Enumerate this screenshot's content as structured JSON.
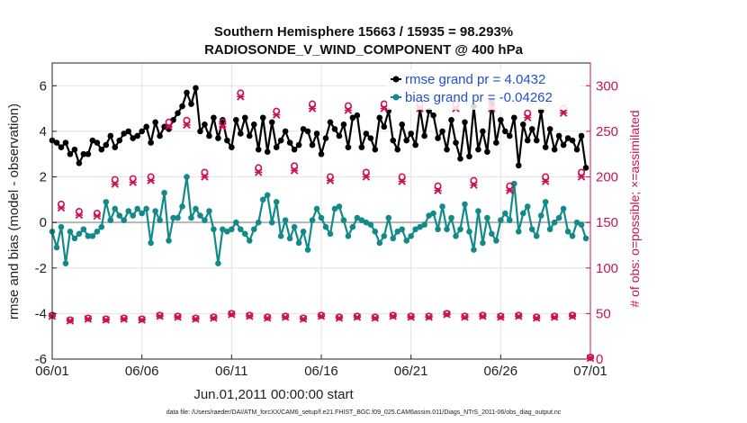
{
  "chart_data": {
    "type": "line",
    "title": "Southern Hemisphere 15663 / 15935 = 98.293%",
    "subtitle": "RADIOSONDE_V_WIND_COMPONENT @ 400 hPa",
    "xlabel": "Jun.01,2011 00:00:00 start",
    "ylabel": "rmse and bias (model - observation)",
    "ylabel_right": "# of obs: o=possible; ×=assimilated",
    "footnote": "data file: /Users/raeder/DAI/ATM_forcXX/CAM6_setup/f.e21.FHIST_BGC.f09_025.CAM6assim.011/Diags_NTrS_2011-06/obs_diag_output.nc",
    "x_ticks": [
      "06/01",
      "06/06",
      "06/11",
      "06/16",
      "06/21",
      "06/26",
      "07/01"
    ],
    "x_tick_days": [
      0,
      5,
      10,
      15,
      20,
      25,
      30
    ],
    "xlim": [
      0,
      30
    ],
    "ylim": [
      -6,
      7
    ],
    "y_ticks": [
      -6,
      -4,
      -2,
      0,
      2,
      4,
      6
    ],
    "y_tick_labels": [
      "-6",
      "-4",
      "-2",
      "0",
      "2",
      "4",
      "6"
    ],
    "ylim_right": [
      0,
      325
    ],
    "y_ticks_right": [
      0,
      50,
      100,
      150,
      200,
      250,
      300
    ],
    "y_tick_labels_right": [
      "0",
      "50",
      "100",
      "150",
      "200",
      "250",
      "300"
    ],
    "grid": true,
    "legend": [
      {
        "label": "rmse grand pr = 4.0432",
        "color": "#000000"
      },
      {
        "label": "bias grand pr = -0.04262",
        "color": "#138a8a"
      }
    ],
    "legend_position": "top-right",
    "series": [
      {
        "name": "rmse",
        "color": "#000000",
        "axis": "left",
        "x": [
          0.0,
          0.25,
          0.5,
          0.75,
          1.0,
          1.25,
          1.5,
          1.75,
          2.0,
          2.25,
          2.5,
          2.75,
          3.0,
          3.25,
          3.5,
          3.75,
          4.0,
          4.25,
          4.5,
          4.75,
          5.0,
          5.25,
          5.5,
          5.75,
          6.0,
          6.25,
          6.5,
          6.75,
          7.0,
          7.25,
          7.5,
          7.75,
          8.0,
          8.25,
          8.5,
          8.75,
          9.0,
          9.25,
          9.5,
          9.75,
          10.0,
          10.25,
          10.5,
          10.75,
          11.0,
          11.25,
          11.5,
          11.75,
          12.0,
          12.25,
          12.5,
          12.75,
          13.0,
          13.25,
          13.5,
          13.75,
          14.0,
          14.25,
          14.5,
          14.75,
          15.0,
          15.25,
          15.5,
          15.75,
          16.0,
          16.25,
          16.5,
          16.75,
          17.0,
          17.25,
          17.5,
          17.75,
          18.0,
          18.25,
          18.5,
          18.75,
          19.0,
          19.25,
          19.5,
          19.75,
          20.0,
          20.25,
          20.5,
          20.75,
          21.0,
          21.25,
          21.5,
          21.75,
          22.0,
          22.25,
          22.5,
          22.75,
          23.0,
          23.25,
          23.5,
          23.75,
          24.0,
          24.25,
          24.5,
          24.75,
          25.0,
          25.25,
          25.5,
          25.75,
          26.0,
          26.25,
          26.5,
          26.75,
          27.0,
          27.25,
          27.5,
          27.75,
          28.0,
          28.25,
          28.5,
          28.75,
          29.0,
          29.25,
          29.5,
          29.75
        ],
        "values": [
          3.6,
          3.5,
          3.3,
          3.5,
          3.0,
          3.2,
          2.6,
          3.0,
          3.0,
          3.6,
          3.5,
          3.2,
          3.4,
          3.8,
          3.3,
          3.6,
          3.9,
          4.0,
          3.7,
          3.8,
          4.0,
          4.2,
          3.5,
          4.4,
          3.8,
          4.2,
          4.1,
          4.5,
          4.8,
          5.1,
          5.7,
          5.2,
          5.9,
          4.0,
          4.3,
          3.8,
          4.6,
          3.7,
          4.5,
          3.6,
          3.3,
          4.5,
          3.9,
          4.6,
          3.8,
          4.3,
          3.2,
          4.6,
          3.1,
          4.4,
          3.3,
          3.6,
          4.0,
          3.5,
          3.2,
          3.4,
          4.1,
          4.0,
          3.4,
          3.9,
          3.0,
          3.7,
          4.4,
          4.1,
          3.8,
          4.3,
          3.3,
          4.6,
          4.7,
          3.3,
          3.9,
          3.7,
          3.2,
          4.6,
          4.2,
          4.9,
          3.6,
          3.2,
          4.3,
          3.6,
          3.9,
          3.4,
          5.0,
          3.8,
          4.9,
          4.7,
          3.7,
          4.0,
          3.2,
          4.5,
          3.5,
          2.8,
          4.4,
          2.9,
          5.1,
          3.2,
          4.0,
          3.1,
          5.3,
          3.5,
          4.5,
          4.0,
          3.8,
          4.6,
          2.5,
          4.3,
          3.6,
          4.1,
          3.6,
          4.9,
          3.3,
          4.1,
          3.2,
          3.8,
          3.4,
          3.7,
          3.6,
          3.2,
          3.8,
          2.4
        ]
      },
      {
        "name": "bias",
        "color": "#138a8a",
        "axis": "left",
        "x": [
          0.0,
          0.25,
          0.5,
          0.75,
          1.0,
          1.25,
          1.5,
          1.75,
          2.0,
          2.25,
          2.5,
          2.75,
          3.0,
          3.25,
          3.5,
          3.75,
          4.0,
          4.25,
          4.5,
          4.75,
          5.0,
          5.25,
          5.5,
          5.75,
          6.0,
          6.25,
          6.5,
          6.75,
          7.0,
          7.25,
          7.5,
          7.75,
          8.0,
          8.25,
          8.5,
          8.75,
          9.0,
          9.25,
          9.5,
          9.75,
          10.0,
          10.25,
          10.5,
          10.75,
          11.0,
          11.25,
          11.5,
          11.75,
          12.0,
          12.25,
          12.5,
          12.75,
          13.0,
          13.25,
          13.5,
          13.75,
          14.0,
          14.25,
          14.5,
          14.75,
          15.0,
          15.25,
          15.5,
          15.75,
          16.0,
          16.25,
          16.5,
          16.75,
          17.0,
          17.25,
          17.5,
          17.75,
          18.0,
          18.25,
          18.5,
          18.75,
          19.0,
          19.25,
          19.5,
          19.75,
          20.0,
          20.25,
          20.5,
          20.75,
          21.0,
          21.25,
          21.5,
          21.75,
          22.0,
          22.25,
          22.5,
          22.75,
          23.0,
          23.25,
          23.5,
          23.75,
          24.0,
          24.25,
          24.5,
          24.75,
          25.0,
          25.25,
          25.5,
          25.75,
          26.0,
          26.25,
          26.5,
          26.75,
          27.0,
          27.25,
          27.5,
          27.75,
          28.0,
          28.25,
          28.5,
          28.75,
          29.0,
          29.25,
          29.5,
          29.75
        ],
        "values": [
          -0.4,
          -1.1,
          -0.2,
          -1.8,
          -0.4,
          -0.7,
          -0.5,
          -0.3,
          -0.6,
          -0.6,
          -0.4,
          -0.2,
          0.9,
          0.1,
          0.6,
          0.3,
          0.1,
          0.5,
          0.3,
          0.6,
          0.4,
          0.6,
          -0.9,
          0.5,
          0.1,
          1.3,
          -0.8,
          0.2,
          0.2,
          0.7,
          2.0,
          0.2,
          0.6,
          0.3,
          0.1,
          0.5,
          -0.3,
          -1.8,
          -0.3,
          -0.4,
          -0.3,
          0.0,
          -0.3,
          -0.5,
          -0.8,
          -0.3,
          0.0,
          1.0,
          1.2,
          0.0,
          0.9,
          -0.6,
          0.1,
          -0.7,
          -0.2,
          -0.9,
          -0.4,
          -1.2,
          0.1,
          0.6,
          0.2,
          -0.2,
          -0.5,
          0.6,
          0.7,
          0.1,
          -0.6,
          -0.2,
          0.2,
          0.1,
          0.0,
          -0.1,
          -0.4,
          -0.9,
          -0.6,
          0.2,
          -0.7,
          -0.4,
          -0.3,
          -0.8,
          -0.6,
          -0.3,
          -0.2,
          -0.1,
          0.3,
          0.4,
          -0.3,
          0.7,
          -0.3,
          0.2,
          -0.6,
          -0.3,
          0.8,
          -0.4,
          -1.2,
          0.5,
          -0.9,
          0.2,
          -0.5,
          -0.8,
          0.1,
          0.4,
          0.1,
          1.7,
          -0.4,
          0.4,
          0.7,
          -0.3,
          -0.6,
          0.3,
          0.9,
          -0.3,
          0.0,
          0.2,
          0.6,
          -0.4,
          -0.6,
          0.0,
          -0.1,
          -0.7
        ]
      },
      {
        "name": "obs_possible",
        "color": "#cc1155",
        "axis": "right",
        "marker": "o",
        "x": [
          0.0,
          0.5,
          1.0,
          1.5,
          2.0,
          2.5,
          3.0,
          3.5,
          4.0,
          4.5,
          5.0,
          5.5,
          6.0,
          6.5,
          7.0,
          7.5,
          8.0,
          8.5,
          9.0,
          9.5,
          10.0,
          10.5,
          11.0,
          11.5,
          12.0,
          12.5,
          13.0,
          13.5,
          14.0,
          14.5,
          15.0,
          15.5,
          16.0,
          16.5,
          17.0,
          17.5,
          18.0,
          18.5,
          19.0,
          19.5,
          20.0,
          20.5,
          21.0,
          21.5,
          22.0,
          22.5,
          23.0,
          23.5,
          24.0,
          24.5,
          25.0,
          25.5,
          26.0,
          26.5,
          27.0,
          27.5,
          28.0,
          28.5,
          29.0,
          29.5,
          30.0
        ],
        "values": [
          48,
          170,
          43,
          162,
          45,
          160,
          44,
          197,
          45,
          198,
          44,
          200,
          48,
          260,
          47,
          262,
          45,
          205,
          46,
          260,
          50,
          292,
          48,
          210,
          46,
          272,
          47,
          212,
          45,
          280,
          48,
          200,
          46,
          278,
          47,
          205,
          46,
          280,
          48,
          200,
          47,
          280,
          47,
          190,
          50,
          280,
          47,
          196,
          48,
          280,
          47,
          190,
          48,
          270,
          46,
          200,
          47,
          275,
          48,
          205,
          2
        ],
        "markers": [
          [
            0.0,
            48
          ],
          [
            0.5,
            170
          ],
          [
            1.0,
            43
          ],
          [
            1.5,
            162
          ],
          [
            2.0,
            45
          ],
          [
            2.5,
            160
          ],
          [
            3.0,
            44
          ],
          [
            3.5,
            197
          ],
          [
            4.0,
            45
          ],
          [
            4.5,
            198
          ]
        ]
      },
      {
        "name": "obs_assimilated",
        "color": "#cc1155",
        "axis": "right",
        "marker": "x",
        "x": [
          0.0,
          0.5,
          1.0,
          1.5,
          2.0,
          2.5,
          3.0,
          3.5,
          4.0,
          4.5,
          5.0,
          5.5,
          6.0,
          6.5,
          7.0,
          7.5,
          8.0,
          8.5,
          9.0,
          9.5,
          10.0,
          10.5,
          11.0,
          11.5,
          12.0,
          12.5,
          13.0,
          13.5,
          14.0,
          14.5,
          15.0,
          15.5,
          16.0,
          16.5,
          17.0,
          17.5,
          18.0,
          18.5,
          19.0,
          19.5,
          20.0,
          20.5,
          21.0,
          21.5,
          22.0,
          22.5,
          23.0,
          23.5,
          24.0,
          24.5,
          25.0,
          25.5,
          26.0,
          26.5,
          27.0,
          27.5,
          28.0,
          28.5,
          29.0,
          29.5,
          30.0
        ],
        "values": [
          47,
          166,
          42,
          158,
          44,
          157,
          43,
          192,
          44,
          194,
          43,
          196,
          47,
          255,
          46,
          257,
          44,
          200,
          45,
          255,
          49,
          288,
          47,
          205,
          45,
          268,
          46,
          207,
          44,
          275,
          47,
          196,
          45,
          273,
          46,
          200,
          45,
          275,
          47,
          195,
          46,
          275,
          46,
          185,
          49,
          275,
          46,
          191,
          47,
          275,
          46,
          185,
          47,
          265,
          45,
          195,
          46,
          270,
          47,
          200,
          1
        ]
      }
    ]
  }
}
